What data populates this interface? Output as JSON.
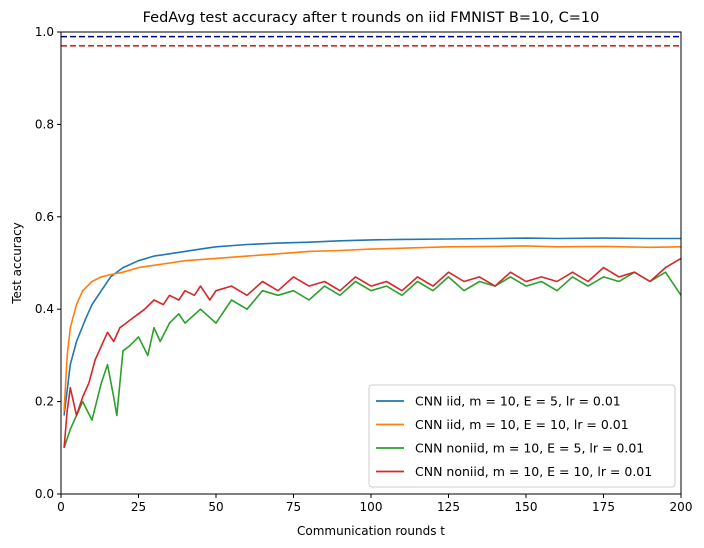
{
  "chart_data": {
    "type": "line",
    "title": "FedAvg test accuracy after t rounds on iid FMNIST B=10, C=10",
    "xlabel": "Communication rounds t",
    "ylabel": "Test accuracy",
    "xlim": [
      0,
      200
    ],
    "ylim": [
      0.0,
      1.0
    ],
    "xticks": [
      "0",
      "25",
      "50",
      "75",
      "100",
      "125",
      "150",
      "175",
      "200"
    ],
    "yticks": [
      "0.0",
      "0.2",
      "0.4",
      "0.6",
      "0.8",
      "1.0"
    ],
    "grid": false,
    "legend_position": "bottom-right",
    "reference_lines": [
      {
        "y": 0.99,
        "color": "#00008b",
        "style": "dashed"
      },
      {
        "y": 0.97,
        "color": "#d62728",
        "style": "dashed"
      }
    ],
    "series": [
      {
        "name": "CNN iid, m = 10, E = 5, lr = 0.01",
        "color": "#1f77b4",
        "x": [
          1,
          3,
          5,
          8,
          10,
          13,
          16,
          20,
          25,
          30,
          35,
          40,
          45,
          50,
          60,
          70,
          80,
          90,
          100,
          110,
          125,
          140,
          150,
          160,
          175,
          190,
          200
        ],
        "y": [
          0.17,
          0.28,
          0.33,
          0.38,
          0.41,
          0.44,
          0.47,
          0.49,
          0.505,
          0.515,
          0.52,
          0.525,
          0.53,
          0.535,
          0.54,
          0.543,
          0.545,
          0.548,
          0.55,
          0.551,
          0.552,
          0.553,
          0.554,
          0.553,
          0.554,
          0.553,
          0.553
        ]
      },
      {
        "name": "CNN iid, m = 10, E = 10, lr = 0.01",
        "color": "#ff7f0e",
        "x": [
          1,
          2,
          3,
          5,
          7,
          10,
          13,
          16,
          20,
          25,
          30,
          35,
          40,
          50,
          60,
          70,
          80,
          90,
          100,
          110,
          125,
          140,
          150,
          160,
          175,
          190,
          200
        ],
        "y": [
          0.18,
          0.3,
          0.36,
          0.41,
          0.44,
          0.46,
          0.47,
          0.475,
          0.48,
          0.49,
          0.495,
          0.5,
          0.505,
          0.51,
          0.515,
          0.52,
          0.525,
          0.527,
          0.53,
          0.532,
          0.535,
          0.536,
          0.537,
          0.535,
          0.536,
          0.534,
          0.535
        ]
      },
      {
        "name": "CNN noniid, m = 10, E = 5, lr = 0.01",
        "color": "#2ca02c",
        "x": [
          1,
          3,
          5,
          7,
          10,
          13,
          15,
          17,
          18,
          20,
          22,
          25,
          28,
          30,
          32,
          35,
          38,
          40,
          45,
          50,
          55,
          60,
          65,
          70,
          75,
          80,
          85,
          90,
          95,
          100,
          105,
          110,
          115,
          120,
          125,
          130,
          135,
          140,
          145,
          150,
          155,
          160,
          165,
          170,
          175,
          180,
          185,
          190,
          195,
          200
        ],
        "y": [
          0.1,
          0.14,
          0.17,
          0.2,
          0.16,
          0.24,
          0.28,
          0.21,
          0.17,
          0.31,
          0.32,
          0.34,
          0.3,
          0.36,
          0.33,
          0.37,
          0.39,
          0.37,
          0.4,
          0.37,
          0.42,
          0.4,
          0.44,
          0.43,
          0.44,
          0.42,
          0.45,
          0.43,
          0.46,
          0.44,
          0.45,
          0.43,
          0.46,
          0.44,
          0.47,
          0.44,
          0.46,
          0.45,
          0.47,
          0.45,
          0.46,
          0.44,
          0.47,
          0.45,
          0.47,
          0.46,
          0.48,
          0.46,
          0.48,
          0.43
        ]
      },
      {
        "name": "CNN noniid, m = 10, E = 10, lr = 0.01",
        "color": "#d62728",
        "x": [
          1,
          2,
          3,
          5,
          7,
          9,
          11,
          13,
          15,
          17,
          19,
          21,
          23,
          25,
          27,
          30,
          33,
          35,
          38,
          40,
          43,
          45,
          48,
          50,
          55,
          60,
          65,
          70,
          75,
          80,
          85,
          90,
          95,
          100,
          105,
          110,
          115,
          120,
          125,
          130,
          135,
          140,
          145,
          150,
          155,
          160,
          165,
          170,
          175,
          180,
          185,
          190,
          195,
          200
        ],
        "y": [
          0.1,
          0.18,
          0.23,
          0.17,
          0.21,
          0.24,
          0.29,
          0.32,
          0.35,
          0.33,
          0.36,
          0.37,
          0.38,
          0.39,
          0.4,
          0.42,
          0.41,
          0.43,
          0.42,
          0.44,
          0.43,
          0.45,
          0.42,
          0.44,
          0.45,
          0.43,
          0.46,
          0.44,
          0.47,
          0.45,
          0.46,
          0.44,
          0.47,
          0.45,
          0.46,
          0.44,
          0.47,
          0.45,
          0.48,
          0.46,
          0.47,
          0.45,
          0.48,
          0.46,
          0.47,
          0.46,
          0.48,
          0.46,
          0.49,
          0.47,
          0.48,
          0.46,
          0.49,
          0.51
        ]
      }
    ]
  }
}
